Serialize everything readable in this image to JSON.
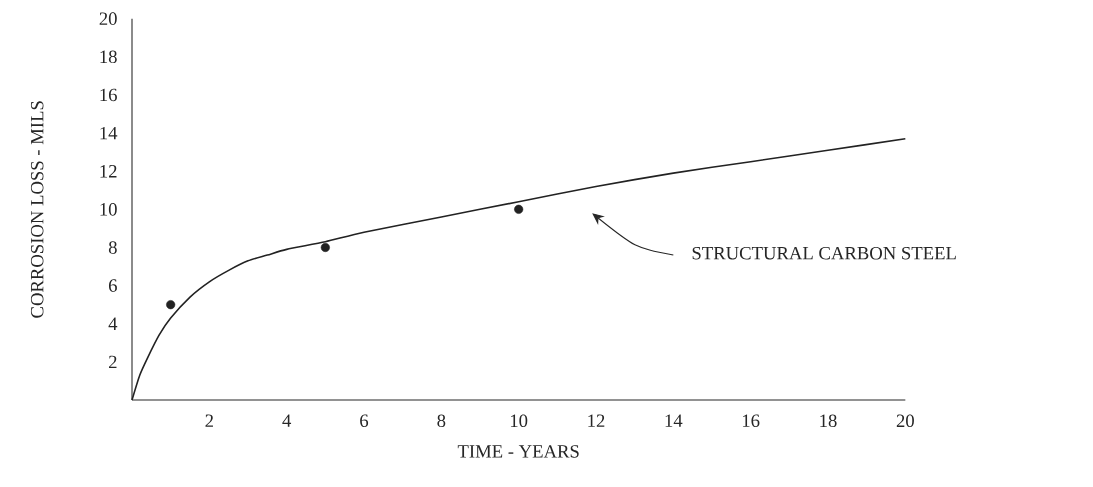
{
  "chart_data": {
    "type": "line",
    "xlabel": "TIME - YEARS",
    "ylabel": "CORROSION LOSS - MILS",
    "xlim": [
      0,
      20
    ],
    "ylim": [
      0,
      20
    ],
    "xticks": [
      2,
      4,
      6,
      8,
      10,
      12,
      14,
      16,
      18,
      20
    ],
    "yticks": [
      2,
      4,
      6,
      8,
      10,
      12,
      14,
      16,
      18,
      20
    ],
    "grid": false,
    "line_style": "solid",
    "series": [
      {
        "color": "#222222",
        "x": [
          0,
          0.2,
          0.4,
          0.7,
          1,
          1.5,
          2,
          2.5,
          3,
          3.5,
          4,
          5,
          6,
          8,
          10,
          12,
          14,
          16,
          18,
          20
        ],
        "values": [
          0,
          1.3,
          2.2,
          3.4,
          4.3,
          5.4,
          6.2,
          6.8,
          7.3,
          7.6,
          7.9,
          8.3,
          8.8,
          9.6,
          10.4,
          11.2,
          11.9,
          12.5,
          13.1,
          13.7
        ],
        "marker": "none"
      },
      {
        "type": "scatter",
        "color": "#222222",
        "x": [
          1,
          5,
          10
        ],
        "values": [
          5,
          8,
          10
        ],
        "marker": "circle"
      }
    ],
    "annotations": [
      "STRUCTURAL  CARBON  STEEL"
    ]
  }
}
